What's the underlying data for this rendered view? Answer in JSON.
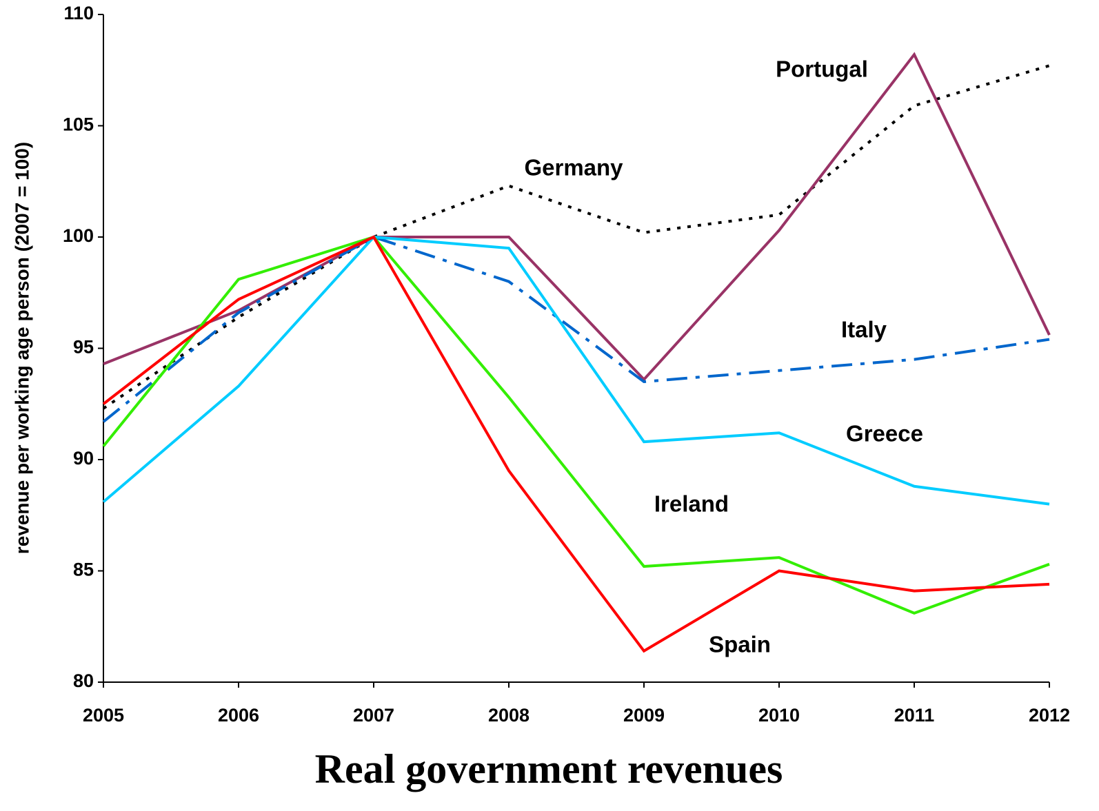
{
  "chart_data": {
    "type": "line",
    "title": "Real government revenues",
    "y_label": "revenue per working age person (2007 = 100)",
    "categories": [
      "2005",
      "2006",
      "2007",
      "2008",
      "2009",
      "2010",
      "2011",
      "2012"
    ],
    "ylim": [
      80,
      110
    ],
    "yticks": [
      80,
      85,
      90,
      95,
      100,
      105,
      110
    ],
    "series": [
      {
        "name": "Germany",
        "color": "#000000",
        "dash": "dotted",
        "values": [
          92.3,
          96.4,
          100,
          102.3,
          100.2,
          101,
          105.9,
          107.7
        ]
      },
      {
        "name": "Portugal",
        "color": "#993366",
        "dash": "solid",
        "values": [
          94.3,
          96.7,
          100,
          100,
          93.6,
          100.3,
          108.2,
          95.6
        ]
      },
      {
        "name": "Italy",
        "color": "#0066cc",
        "dash": "dashdot",
        "values": [
          91.7,
          96.6,
          100,
          98,
          93.5,
          94,
          94.5,
          95.4
        ]
      },
      {
        "name": "Greece",
        "color": "#00ccff",
        "dash": "solid",
        "values": [
          88.1,
          93.3,
          100,
          99.5,
          90.8,
          91.2,
          88.8,
          88
        ]
      },
      {
        "name": "Ireland",
        "color": "#33ee00",
        "dash": "solid",
        "values": [
          90.6,
          98.1,
          100,
          92.8,
          85.2,
          85.6,
          83.1,
          85.3
        ]
      },
      {
        "name": "Spain",
        "color": "#ff0000",
        "dash": "solid",
        "values": [
          92.5,
          97.2,
          100,
          89.5,
          81.4,
          85,
          84.1,
          84.4
        ]
      }
    ]
  }
}
